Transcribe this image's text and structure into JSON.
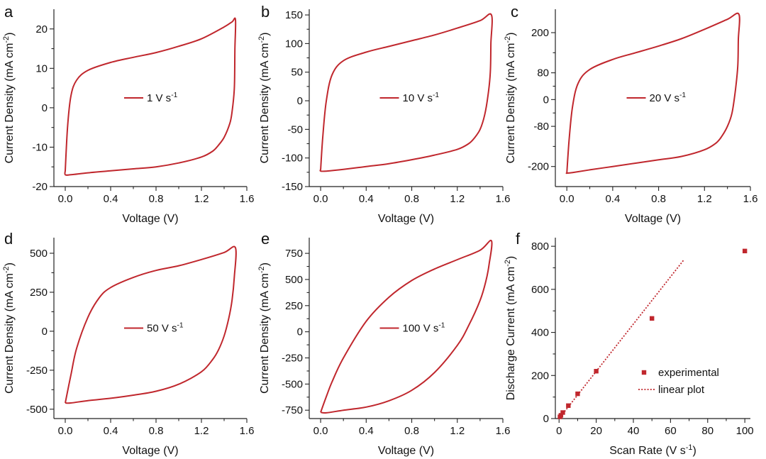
{
  "chart_data": [
    {
      "panel": "a",
      "type": "line",
      "xlabel": "Voltage (V)",
      "ylabel": "Current Density (mA cm-2)",
      "xlim": [
        -0.1,
        1.6
      ],
      "ylim": [
        -20,
        25
      ],
      "xticks": [
        "0.0",
        "0.4",
        "0.8",
        "1.2",
        "1.6"
      ],
      "yticks": [
        "-20",
        "-10",
        "0",
        "10",
        "20"
      ],
      "legend": "1 V s-1",
      "legend_position": "center",
      "series": [
        {
          "name": "1 V s-1",
          "color": "#c0272d",
          "x": [
            0.0,
            0.02,
            0.05,
            0.1,
            0.2,
            0.4,
            0.6,
            0.8,
            1.0,
            1.2,
            1.4,
            1.47,
            1.5,
            1.495,
            1.49,
            1.47,
            1.45,
            1.4,
            1.35,
            1.3,
            1.2,
            1.0,
            0.8,
            0.6,
            0.4,
            0.2,
            0.05,
            0.0,
            0.0
          ],
          "y": [
            -16,
            -5,
            3,
            7,
            9.5,
            11.5,
            12.8,
            14.0,
            15.6,
            17.5,
            20.5,
            21.8,
            22.3,
            15,
            5,
            -1,
            -4,
            -7.5,
            -9.5,
            -11,
            -12.5,
            -14,
            -15,
            -15.5,
            -16,
            -16.5,
            -17,
            -17,
            -16
          ]
        }
      ]
    },
    {
      "panel": "b",
      "type": "line",
      "xlabel": "Voltage (V)",
      "ylabel": "Current Density (mA cm-2)",
      "xlim": [
        -0.1,
        1.6
      ],
      "ylim": [
        -150,
        160
      ],
      "xticks": [
        "0.0",
        "0.4",
        "0.8",
        "1.2",
        "1.6"
      ],
      "yticks": [
        "-150",
        "-100",
        "-50",
        "0",
        "50",
        "100",
        "150"
      ],
      "legend": "10 V s-1",
      "legend_position": "center",
      "series": [
        {
          "name": "10 V s-1",
          "color": "#c0272d",
          "x": [
            0.0,
            0.02,
            0.05,
            0.1,
            0.2,
            0.4,
            0.6,
            0.8,
            1.0,
            1.2,
            1.4,
            1.5,
            1.495,
            1.49,
            1.47,
            1.44,
            1.4,
            1.35,
            1.3,
            1.2,
            1.0,
            0.8,
            0.6,
            0.4,
            0.2,
            0.05,
            0.0,
            0.0
          ],
          "y": [
            -120,
            -60,
            0,
            45,
            70,
            85,
            95,
            105,
            115,
            127,
            140,
            150,
            100,
            50,
            10,
            -25,
            -50,
            -65,
            -75,
            -85,
            -95,
            -103,
            -110,
            -115,
            -120,
            -123,
            -123,
            -120
          ]
        }
      ]
    },
    {
      "panel": "c",
      "type": "line",
      "xlabel": "Voltage (V)",
      "ylabel": "Current Density (mA cm-2)",
      "xlim": [
        -0.1,
        1.6
      ],
      "ylim": [
        -260,
        270
      ],
      "xticks": [
        "0.0",
        "0.4",
        "0.8",
        "1.2",
        "1.6"
      ],
      "yticks": [
        "-200",
        "-80",
        "0",
        "80",
        "200"
      ],
      "ytick_values": [
        -200,
        -80,
        0,
        80,
        200
      ],
      "legend": "20 V s-1",
      "legend_position": "center",
      "series": [
        {
          "name": "20 V s-1",
          "color": "#c0272d",
          "x": [
            0.0,
            0.02,
            0.05,
            0.1,
            0.2,
            0.4,
            0.6,
            0.8,
            1.0,
            1.2,
            1.4,
            1.5,
            1.495,
            1.49,
            1.47,
            1.44,
            1.4,
            1.35,
            1.3,
            1.2,
            1.0,
            0.8,
            0.6,
            0.4,
            0.2,
            0.05,
            0.0,
            0.0
          ],
          "y": [
            -220,
            -120,
            -20,
            50,
            90,
            120,
            140,
            160,
            182,
            210,
            240,
            255,
            180,
            100,
            30,
            -40,
            -80,
            -110,
            -130,
            -150,
            -170,
            -180,
            -190,
            -200,
            -210,
            -218,
            -220,
            -220
          ]
        }
      ]
    },
    {
      "panel": "d",
      "type": "line",
      "xlabel": "Voltage (V)",
      "ylabel": "Current Density (mA cm-2)",
      "xlim": [
        -0.1,
        1.6
      ],
      "ylim": [
        -560,
        600
      ],
      "xticks": [
        "0.0",
        "0.4",
        "0.8",
        "1.2",
        "1.6"
      ],
      "yticks": [
        "-500",
        "-250",
        "0",
        "250",
        "500"
      ],
      "legend": "50 V s-1",
      "legend_position": "center",
      "series": [
        {
          "name": "50 V s-1",
          "color": "#c0272d",
          "x": [
            0.0,
            0.05,
            0.1,
            0.2,
            0.3,
            0.4,
            0.6,
            0.8,
            1.0,
            1.2,
            1.4,
            1.5,
            1.49,
            1.47,
            1.44,
            1.4,
            1.35,
            1.3,
            1.2,
            1.0,
            0.8,
            0.6,
            0.4,
            0.2,
            0.05,
            0.0
          ],
          "y": [
            -460,
            -280,
            -110,
            90,
            215,
            280,
            345,
            390,
            420,
            460,
            505,
            535,
            350,
            200,
            80,
            -30,
            -120,
            -180,
            -260,
            -340,
            -385,
            -410,
            -430,
            -445,
            -460,
            -460
          ]
        }
      ]
    },
    {
      "panel": "e",
      "type": "line",
      "xlabel": "Voltage (V)",
      "ylabel": "Current Density (mA cm-2)",
      "xlim": [
        -0.1,
        1.6
      ],
      "ylim": [
        -830,
        900
      ],
      "xticks": [
        "0.0",
        "0.4",
        "0.8",
        "1.2",
        "1.6"
      ],
      "yticks": [
        "-750",
        "-500",
        "-250",
        "0",
        "250",
        "500",
        "750"
      ],
      "legend": "100 V s-1",
      "legend_position": "center",
      "series": [
        {
          "name": "100 V s-1",
          "color": "#c0272d",
          "x": [
            0.0,
            0.05,
            0.1,
            0.2,
            0.4,
            0.6,
            0.8,
            1.0,
            1.2,
            1.4,
            1.5,
            1.48,
            1.45,
            1.4,
            1.3,
            1.2,
            1.0,
            0.8,
            0.6,
            0.4,
            0.2,
            0.05,
            0.0
          ],
          "y": [
            -770,
            -620,
            -480,
            -250,
            100,
            330,
            490,
            600,
            690,
            780,
            870,
            650,
            480,
            300,
            60,
            -130,
            -390,
            -560,
            -660,
            -720,
            -750,
            -775,
            -770
          ]
        }
      ]
    },
    {
      "panel": "f",
      "type": "scatter",
      "xlabel": "Scan Rate (V s-1)",
      "ylabel": "Discharge Current (mA cm-2)",
      "xlim": [
        -2,
        103
      ],
      "ylim": [
        0,
        840
      ],
      "xticks": [
        "0",
        "20",
        "40",
        "60",
        "80",
        "100"
      ],
      "yticks": [
        "0",
        "200",
        "400",
        "600",
        "800"
      ],
      "legend_position": "bottom-right",
      "series": [
        {
          "name": "experimental",
          "kind": "scatter",
          "color": "#c0272d",
          "x": [
            0.5,
            1,
            2,
            5,
            10,
            20,
            50,
            100
          ],
          "y": [
            8,
            15,
            28,
            60,
            115,
            220,
            465,
            778
          ]
        },
        {
          "name": "linear plot",
          "kind": "line",
          "style": "dotted",
          "color": "#c0272d",
          "x": [
            0,
            67
          ],
          "y": [
            0,
            735
          ]
        }
      ]
    }
  ]
}
